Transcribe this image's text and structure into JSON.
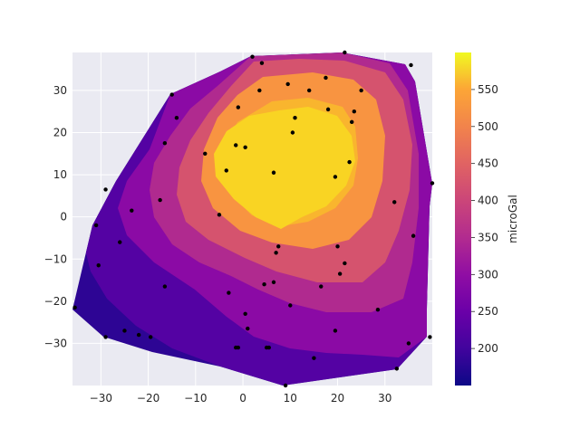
{
  "chart_data": {
    "type": "contourf",
    "title": "",
    "xlabel": "",
    "ylabel": "",
    "xlim": [
      -36,
      40
    ],
    "ylim": [
      -40,
      39
    ],
    "x_ticks": [
      -30,
      -20,
      -10,
      0,
      10,
      20,
      30
    ],
    "y_ticks": [
      -30,
      -20,
      -10,
      0,
      10,
      20,
      30
    ],
    "x_tick_labels": [
      "−30",
      "−20",
      "−10",
      "0",
      "10",
      "20",
      "30"
    ],
    "y_tick_labels": [
      "−30",
      "−20",
      "−10",
      "0",
      "10",
      "20",
      "30"
    ],
    "colorbar": {
      "label": "microGal",
      "range": [
        150,
        600
      ],
      "ticks": [
        200,
        250,
        300,
        350,
        400,
        450,
        500,
        550
      ],
      "tick_labels": [
        "200",
        "250",
        "300",
        "350",
        "400",
        "450",
        "500",
        "550"
      ],
      "colormap": "plasma"
    },
    "levels": [
      150,
      200,
      250,
      300,
      350,
      400,
      450,
      500,
      550,
      600
    ],
    "level_colors": [
      "#2d0594",
      "#5402a3",
      "#8b0aa5",
      "#b02a8f",
      "#d5536e",
      "#e16462",
      "#f89441",
      "#f9b52e",
      "#f9d423"
    ],
    "grid": true,
    "background": "#eaeaf2",
    "points": [
      [
        2,
        38
      ],
      [
        4,
        36.5
      ],
      [
        3.5,
        30
      ],
      [
        9.5,
        31.5
      ],
      [
        14,
        30
      ],
      [
        17.5,
        33
      ],
      [
        25,
        30
      ],
      [
        35.5,
        36
      ],
      [
        21.5,
        39
      ],
      [
        -15,
        29
      ],
      [
        -14,
        23.5
      ],
      [
        -1,
        26
      ],
      [
        11,
        23.5
      ],
      [
        18,
        25.5
      ],
      [
        23.5,
        25
      ],
      [
        23,
        22.5
      ],
      [
        10.5,
        20
      ],
      [
        -16.5,
        17.5
      ],
      [
        -1.5,
        17
      ],
      [
        0.5,
        16.5
      ],
      [
        -8,
        15
      ],
      [
        22.5,
        13
      ],
      [
        -3.5,
        11
      ],
      [
        6.5,
        10.5
      ],
      [
        19.5,
        9.5
      ],
      [
        -29,
        6.5
      ],
      [
        -17.5,
        4
      ],
      [
        32,
        3.5
      ],
      [
        -23.5,
        1.5
      ],
      [
        -5,
        0.5
      ],
      [
        -31,
        -2
      ],
      [
        36,
        -4.5
      ],
      [
        -26,
        -6
      ],
      [
        7.5,
        -7
      ],
      [
        20,
        -7
      ],
      [
        7,
        -8.5
      ],
      [
        -30.5,
        -11.5
      ],
      [
        21.5,
        -11
      ],
      [
        20.5,
        -13.5
      ],
      [
        -16.5,
        -16.5
      ],
      [
        4.5,
        -16
      ],
      [
        6.5,
        -15.5
      ],
      [
        16.5,
        -16.5
      ],
      [
        -3,
        -18
      ],
      [
        -35.5,
        -21.5
      ],
      [
        10,
        -21
      ],
      [
        28.5,
        -22
      ],
      [
        0.5,
        -23
      ],
      [
        1,
        -26.5
      ],
      [
        -25,
        -27
      ],
      [
        -22,
        -28
      ],
      [
        -29,
        -28.5
      ],
      [
        -19.5,
        -28.5
      ],
      [
        19.5,
        -27
      ],
      [
        39.5,
        -28.5
      ],
      [
        35,
        -30
      ],
      [
        -1,
        -31
      ],
      [
        -1.5,
        -31
      ],
      [
        5,
        -31
      ],
      [
        5.5,
        -31
      ],
      [
        15,
        -33.5
      ],
      [
        32.5,
        -36
      ],
      [
        9,
        -40
      ],
      [
        40,
        8
      ]
    ]
  }
}
